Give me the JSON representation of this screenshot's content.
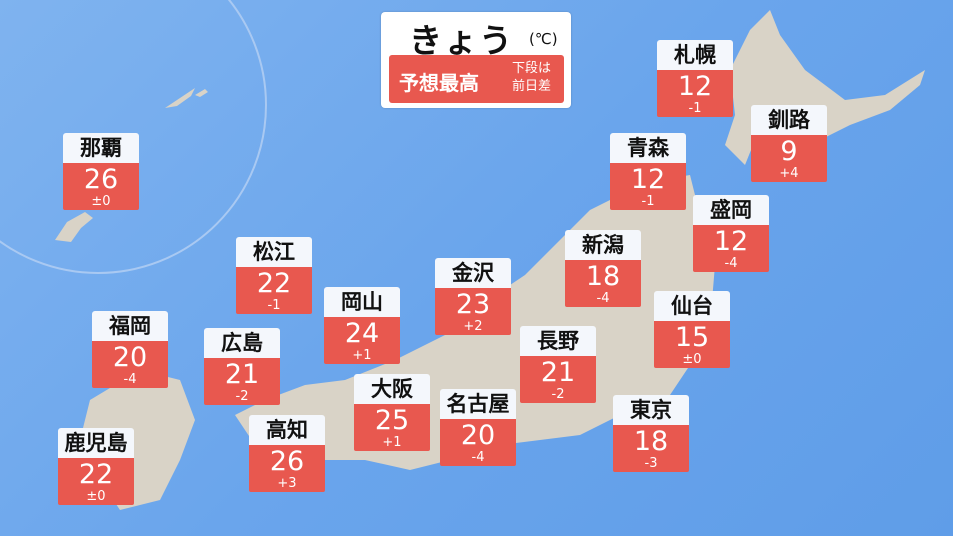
{
  "header": {
    "title": "きょう",
    "unit": "(℃)",
    "subtitle": "予想最高",
    "note_line1": "下段は",
    "note_line2": "前日差"
  },
  "colors": {
    "sea": "#6aa5ec",
    "land": "#d9d3c7",
    "box": "#e8584f",
    "label": "#f4f7fc"
  },
  "cities": [
    {
      "name": "札幌",
      "temp": "12",
      "diff": "-1"
    },
    {
      "name": "釧路",
      "temp": "9",
      "diff": "+4"
    },
    {
      "name": "那覇",
      "temp": "26",
      "diff": "±0"
    },
    {
      "name": "青森",
      "temp": "12",
      "diff": "-1"
    },
    {
      "name": "盛岡",
      "temp": "12",
      "diff": "-4"
    },
    {
      "name": "新潟",
      "temp": "18",
      "diff": "-4"
    },
    {
      "name": "松江",
      "temp": "22",
      "diff": "-1"
    },
    {
      "name": "金沢",
      "temp": "23",
      "diff": "+2"
    },
    {
      "name": "岡山",
      "temp": "24",
      "diff": "+1"
    },
    {
      "name": "仙台",
      "temp": "15",
      "diff": "±0"
    },
    {
      "name": "福岡",
      "temp": "20",
      "diff": "-4"
    },
    {
      "name": "広島",
      "temp": "21",
      "diff": "-2"
    },
    {
      "name": "長野",
      "temp": "21",
      "diff": "-2"
    },
    {
      "name": "大阪",
      "temp": "25",
      "diff": "+1"
    },
    {
      "name": "名古屋",
      "temp": "20",
      "diff": "-4"
    },
    {
      "name": "東京",
      "temp": "18",
      "diff": "-3"
    },
    {
      "name": "高知",
      "temp": "26",
      "diff": "+3"
    },
    {
      "name": "鹿児島",
      "temp": "22",
      "diff": "±0"
    }
  ]
}
